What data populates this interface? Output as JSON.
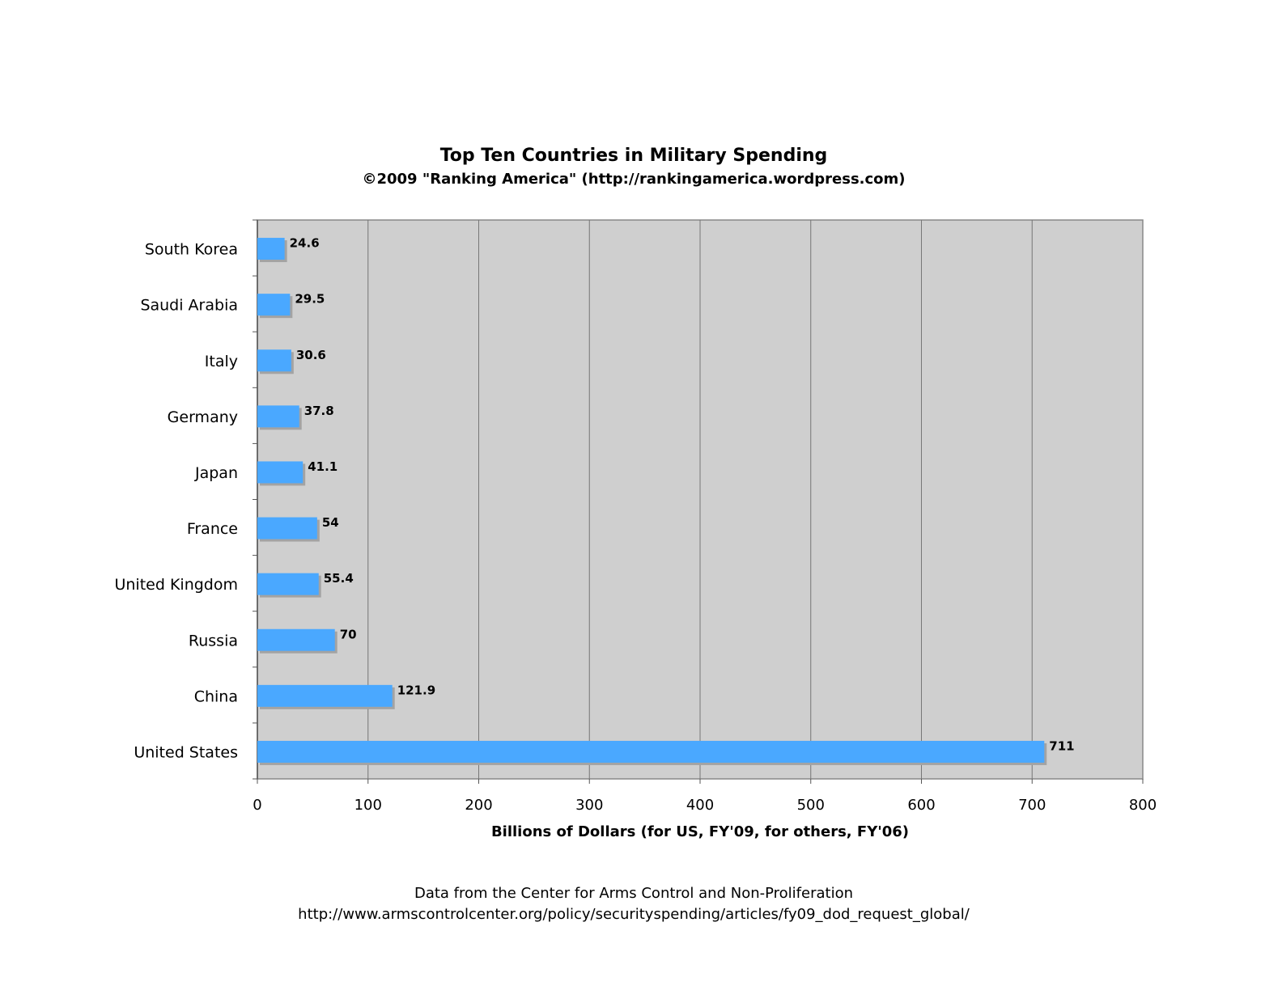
{
  "chart_data": {
    "type": "bar",
    "orientation": "horizontal",
    "title": "Top Ten Countries in Military Spending",
    "subtitle": "©2009 \"Ranking America\" (http://rankingamerica.wordpress.com)",
    "xlabel": "Billions of Dollars (for US, FY'09, for others, FY'06)",
    "ylabel": "",
    "categories": [
      "South Korea",
      "Saudi Arabia",
      "Italy",
      "Germany",
      "Japan",
      "France",
      "United Kingdom",
      "Russia",
      "China",
      "United States"
    ],
    "values": [
      24.6,
      29.5,
      30.6,
      37.8,
      41.1,
      54,
      55.4,
      70,
      121.9,
      711
    ],
    "value_labels": [
      "24.6",
      "29.5",
      "30.6",
      "37.8",
      "41.1",
      "54",
      "55.4",
      "70",
      "121.9",
      "711"
    ],
    "xlim": [
      0,
      800
    ],
    "xticks": [
      "0",
      "100",
      "200",
      "300",
      "400",
      "500",
      "600",
      "700",
      "800"
    ],
    "grid": true,
    "colors": {
      "bar": "#4aa8ff",
      "shadow": "#a3a3a3",
      "plot_bg": "#cfcfcf",
      "grid": "#777777"
    },
    "footnote": [
      "Data from the Center for Arms Control and Non-Proliferation",
      "http://www.armscontrolcenter.org/policy/securityspending/articles/fy09_dod_request_global/"
    ]
  }
}
